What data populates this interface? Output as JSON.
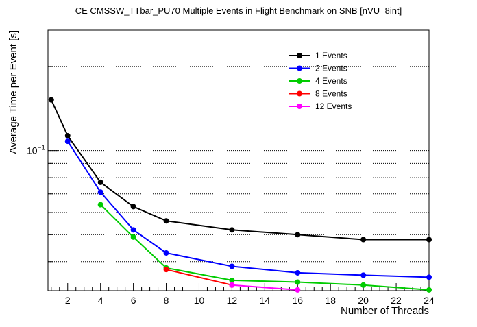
{
  "chart_data": {
    "type": "line",
    "title": "CE CMSSW_TTbar_PU70 Multiple Events in Flight Benchmark on SNB [nVU=8int]",
    "xlabel": "Number of Threads",
    "ylabel": "Average Time per Event [s]",
    "xlim": [
      0.8,
      24
    ],
    "ylim": [
      0.0315,
      0.27
    ],
    "y_scale": "log",
    "grid": "horizontal dotted",
    "legend_position": "top-right",
    "x_ticks": [
      2,
      4,
      6,
      8,
      10,
      12,
      14,
      16,
      18,
      20,
      22,
      24
    ],
    "x_tick_labels": [
      "2",
      "4",
      "6",
      "8",
      "10",
      "12",
      "14",
      "16",
      "18",
      "20",
      "22",
      "24"
    ],
    "y_tick_labels": [
      {
        "value": 0.1,
        "base": "10",
        "exp": "−1"
      }
    ],
    "series": [
      {
        "name": "1 Events",
        "color": "#000000",
        "x": [
          1,
          2,
          4,
          6,
          8,
          12,
          16,
          20,
          24
        ],
        "y": [
          0.152,
          0.113,
          0.077,
          0.063,
          0.056,
          0.052,
          0.05,
          0.048,
          0.048
        ]
      },
      {
        "name": "2 Events",
        "color": "#0000ff",
        "x": [
          2,
          4,
          6,
          8,
          12,
          16,
          20,
          24
        ],
        "y": [
          0.108,
          0.071,
          0.052,
          0.043,
          0.0385,
          0.0365,
          0.0358,
          0.0352
        ]
      },
      {
        "name": "4 Events",
        "color": "#00cc00",
        "x": [
          4,
          6,
          8,
          12,
          16,
          20,
          24
        ],
        "y": [
          0.064,
          0.049,
          0.038,
          0.0343,
          0.0338,
          0.033,
          0.0317
        ]
      },
      {
        "name": "8 Events",
        "color": "#ff0000",
        "x": [
          8,
          12
        ],
        "y": [
          0.0375,
          0.033
        ]
      },
      {
        "name": "12 Events",
        "color": "#ff00ff",
        "x": [
          12,
          16
        ],
        "y": [
          0.033,
          0.0317
        ]
      }
    ]
  }
}
